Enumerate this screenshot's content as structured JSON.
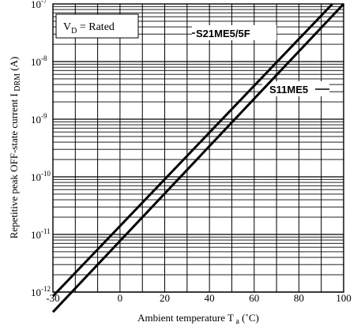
{
  "chart_data": {
    "type": "line",
    "xlabel": "Ambient temperature T",
    "xlabel_sub": "a",
    "xlabel_unit": " (˚C)",
    "ylabel": "Repetitive peak OFF-state current I",
    "ylabel_sub": "DRM",
    "ylabel_unit": " (A)",
    "annotation": {
      "main": "V",
      "sub": "D",
      "rest": " = Rated"
    },
    "x_scale": "linear",
    "y_scale": "log",
    "xlim": [
      -30,
      100
    ],
    "ylim": [
      1e-12,
      1e-07
    ],
    "x_ticks": [
      -30,
      0,
      20,
      40,
      60,
      80,
      100
    ],
    "x_tick_labels": [
      "-30",
      "0",
      "20",
      "40",
      "60",
      "80",
      "100"
    ],
    "y_ticks": [
      {
        "value": 1e-07,
        "base": "10",
        "exp": "-7"
      },
      {
        "value": 1e-08,
        "base": "10",
        "exp": "-8"
      },
      {
        "value": 1e-09,
        "base": "10",
        "exp": "-9"
      },
      {
        "value": 1e-10,
        "base": "10",
        "exp": "-10"
      },
      {
        "value": 1e-11,
        "base": "10",
        "exp": "-11"
      },
      {
        "value": 1e-12,
        "base": "10",
        "exp": "-12"
      }
    ],
    "grid": true,
    "series": [
      {
        "name": "S21ME5/5F",
        "x": [
          -30,
          95
        ],
        "y": [
          8.5e-13,
          1e-07
        ]
      },
      {
        "name": "S11ME5",
        "x": [
          -30,
          100
        ],
        "y": [
          4.5e-13,
          1e-07
        ]
      }
    ]
  }
}
